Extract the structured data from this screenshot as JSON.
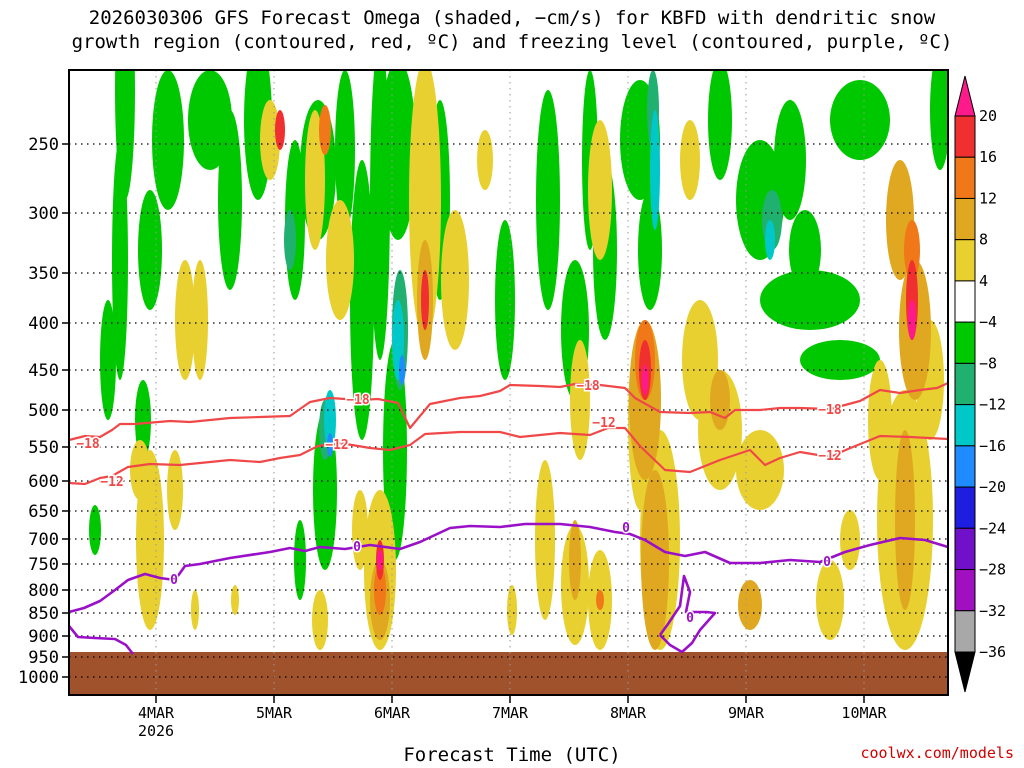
{
  "title_line1": "2026030306 GFS Forecast Omega (shaded, −cm/s) for KBFD with dendritic snow",
  "title_line2": "growth region (contoured, red, ºC) and freezing level (contoured, purple, ºC)",
  "xlabel": "Forecast Time (UTC)",
  "credit": "coolwx.com/models",
  "colors": {
    "dendritic": "#f04848",
    "freezing": "#9a10c8",
    "ground": "#a0522d"
  },
  "chart_data": {
    "type": "heatmap",
    "y_ticks": [
      250,
      300,
      350,
      400,
      450,
      500,
      550,
      600,
      650,
      700,
      750,
      800,
      850,
      900,
      950,
      1000
    ],
    "y_tick_labels": [
      "250",
      "300",
      "350",
      "400",
      "450",
      "500",
      "550",
      "600",
      "650",
      "700",
      "750",
      "800",
      "850",
      "900",
      "950",
      "1000"
    ],
    "x_ticks": [
      {
        "label": "4MAR",
        "sub": "2026"
      },
      {
        "label": "5MAR",
        "sub": ""
      },
      {
        "label": "6MAR",
        "sub": ""
      },
      {
        "label": "7MAR",
        "sub": ""
      },
      {
        "label": "8MAR",
        "sub": ""
      },
      {
        "label": "9MAR",
        "sub": ""
      },
      {
        "label": "10MAR",
        "sub": ""
      }
    ],
    "colorbar": {
      "labels": [
        "20",
        "16",
        "12",
        "8",
        "4",
        "−4",
        "−8",
        "−12",
        "−16",
        "−20",
        "−24",
        "−28",
        "−32",
        "−36"
      ],
      "colors": [
        "#ff1a8c",
        "#f03030",
        "#f07818",
        "#e0a820",
        "#e8d030",
        "#ffffff",
        "#00c800",
        "#20b070",
        "#00c8c8",
        "#1e8cff",
        "#1e1ee0",
        "#7010c8",
        "#a010c0",
        "#a8a8a8",
        "#000000"
      ]
    },
    "contour_labels": {
      "minus18": "−18",
      "minus12": "−12",
      "zero": "0"
    },
    "dendritic_minus18": [
      [
        69,
        440
      ],
      [
        85,
        436
      ],
      [
        100,
        437
      ],
      [
        112,
        430
      ],
      [
        120,
        424
      ],
      [
        135,
        424
      ],
      [
        170,
        421
      ],
      [
        190,
        422
      ],
      [
        230,
        418
      ],
      [
        260,
        417
      ],
      [
        290,
        416
      ],
      [
        310,
        402
      ],
      [
        330,
        398
      ],
      [
        360,
        400
      ],
      [
        378,
        399
      ],
      [
        398,
        403
      ],
      [
        410,
        428
      ],
      [
        430,
        404
      ],
      [
        460,
        398
      ],
      [
        480,
        396
      ],
      [
        500,
        391
      ],
      [
        510,
        385
      ],
      [
        540,
        386
      ],
      [
        560,
        387
      ],
      [
        575,
        384
      ],
      [
        600,
        385
      ],
      [
        625,
        388
      ],
      [
        635,
        398
      ],
      [
        660,
        412
      ],
      [
        690,
        413
      ],
      [
        710,
        412
      ],
      [
        725,
        418
      ],
      [
        735,
        410
      ],
      [
        760,
        410
      ],
      [
        780,
        408
      ],
      [
        800,
        408
      ],
      [
        830,
        409
      ],
      [
        860,
        401
      ],
      [
        880,
        390
      ],
      [
        900,
        393
      ],
      [
        920,
        390
      ],
      [
        937,
        388
      ],
      [
        948,
        383
      ]
    ],
    "dendritic_minus12": [
      [
        69,
        483
      ],
      [
        85,
        484
      ],
      [
        100,
        478
      ],
      [
        112,
        476
      ],
      [
        128,
        467
      ],
      [
        150,
        464
      ],
      [
        180,
        465
      ],
      [
        230,
        460
      ],
      [
        260,
        462
      ],
      [
        280,
        458
      ],
      [
        300,
        455
      ],
      [
        318,
        446
      ],
      [
        340,
        443
      ],
      [
        370,
        448
      ],
      [
        390,
        450
      ],
      [
        410,
        445
      ],
      [
        425,
        434
      ],
      [
        460,
        432
      ],
      [
        500,
        432
      ],
      [
        520,
        437
      ],
      [
        560,
        433
      ],
      [
        590,
        435
      ],
      [
        608,
        428
      ],
      [
        625,
        428
      ],
      [
        640,
        446
      ],
      [
        665,
        470
      ],
      [
        690,
        472
      ],
      [
        720,
        460
      ],
      [
        750,
        450
      ],
      [
        765,
        465
      ],
      [
        780,
        458
      ],
      [
        800,
        452
      ],
      [
        830,
        457
      ],
      [
        848,
        449
      ],
      [
        880,
        436
      ],
      [
        910,
        437
      ],
      [
        948,
        439
      ]
    ],
    "freezing_zero_main": [
      [
        69,
        612
      ],
      [
        84,
        608
      ],
      [
        100,
        601
      ],
      [
        115,
        590
      ],
      [
        128,
        580
      ],
      [
        145,
        574
      ],
      [
        160,
        578
      ],
      [
        175,
        580
      ],
      [
        185,
        566
      ],
      [
        200,
        564
      ],
      [
        230,
        558
      ],
      [
        270,
        552
      ],
      [
        290,
        548
      ],
      [
        305,
        551
      ],
      [
        320,
        547
      ],
      [
        345,
        549
      ],
      [
        370,
        545
      ],
      [
        400,
        549
      ],
      [
        420,
        542
      ],
      [
        450,
        528
      ],
      [
        470,
        526
      ],
      [
        500,
        527
      ],
      [
        525,
        524
      ],
      [
        560,
        524
      ],
      [
        590,
        527
      ],
      [
        615,
        532
      ],
      [
        630,
        534
      ],
      [
        645,
        540
      ],
      [
        665,
        552
      ],
      [
        685,
        556
      ],
      [
        705,
        552
      ],
      [
        730,
        563
      ],
      [
        760,
        563
      ],
      [
        790,
        560
      ],
      [
        820,
        562
      ],
      [
        845,
        552
      ],
      [
        870,
        545
      ],
      [
        900,
        538
      ],
      [
        925,
        540
      ],
      [
        948,
        547
      ]
    ],
    "freezing_zero_lower": [
      [
        69,
        626
      ],
      [
        78,
        637
      ],
      [
        95,
        638
      ],
      [
        115,
        639
      ],
      [
        126,
        645
      ],
      [
        133,
        654
      ]
    ],
    "freezing_zero_loop": [
      [
        660,
        635
      ],
      [
        668,
        624
      ],
      [
        680,
        606
      ],
      [
        684,
        576
      ],
      [
        690,
        592
      ],
      [
        686,
        612
      ],
      [
        706,
        612
      ],
      [
        715,
        613
      ],
      [
        700,
        630
      ],
      [
        692,
        643
      ],
      [
        682,
        652
      ],
      [
        670,
        645
      ],
      [
        660,
        635
      ]
    ]
  }
}
